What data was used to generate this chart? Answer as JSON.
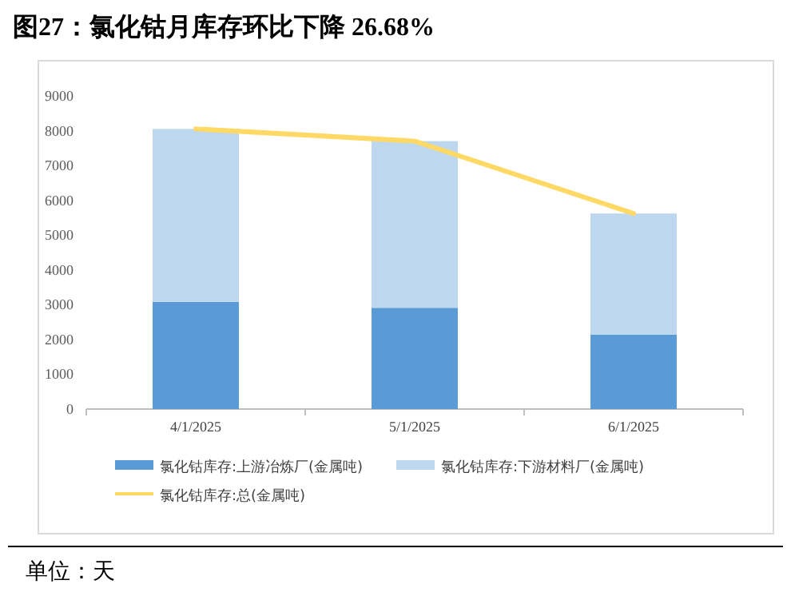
{
  "chart_data": {
    "type": "bar",
    "title": "图27：氯化钴月库存环比下降 26.68%",
    "categories": [
      "4/1/2025",
      "5/1/2025",
      "6/1/2025"
    ],
    "stacked": true,
    "series": [
      {
        "name": "氯化钴库存:上游冶炼厂(金属吨)",
        "color": "#5b9bd5",
        "values": [
          3080,
          2910,
          2140
        ]
      },
      {
        "name": "氯化钴库存:下游材料厂(金属吨)",
        "color": "#bdd7ee",
        "values": [
          4970,
          4790,
          3480
        ]
      },
      {
        "name": "氯化钴库存:总(金属吨)",
        "type": "line",
        "color": "#ffd966",
        "values": [
          8050,
          7700,
          5620
        ]
      }
    ],
    "ylim": [
      0,
      9000
    ],
    "yticks": [
      0,
      1000,
      2000,
      3000,
      4000,
      5000,
      6000,
      7000,
      8000,
      9000
    ],
    "grid": false,
    "legend": "bottom",
    "annotations": [
      "单位：天"
    ]
  }
}
